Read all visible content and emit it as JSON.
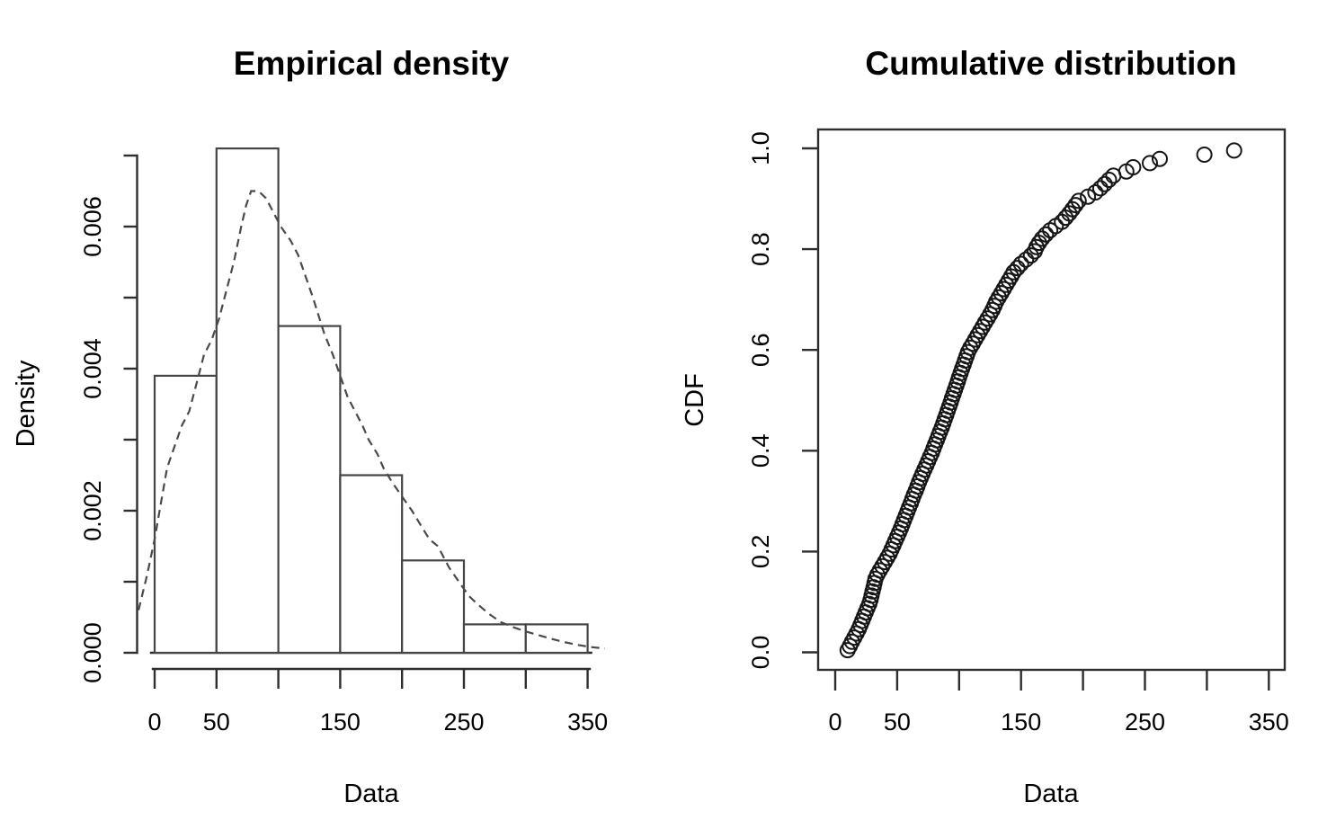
{
  "figure": {
    "background": "#ffffff",
    "text_color": "#000000",
    "line_color": "#2e2e2e",
    "point_color": "#161616"
  },
  "chart_data": [
    {
      "type": "bar",
      "subtype": "histogram-with-density-curve",
      "title": "Empirical density",
      "xlabel": "Data",
      "ylabel": "Density",
      "xlim": [
        -14,
        364
      ],
      "ylim": [
        0,
        0.007
      ],
      "grid": false,
      "legend": "none",
      "bin_breaks": [
        0,
        50,
        100,
        150,
        200,
        250,
        300,
        350
      ],
      "bin_densities": [
        0.0039,
        0.0071,
        0.0046,
        0.0025,
        0.0013,
        0.0004,
        0.0004
      ],
      "x_ticks": {
        "values": [
          0,
          50,
          100,
          150,
          200,
          250,
          300,
          350
        ],
        "labels": [
          "0",
          "50",
          "",
          "150",
          "",
          "250",
          "",
          "350"
        ]
      },
      "y_ticks": {
        "values": [
          0,
          0.001,
          0.002,
          0.003,
          0.004,
          0.005,
          0.006,
          0.007
        ],
        "labels": [
          "0.000",
          "",
          "0.002",
          "",
          "0.004",
          "",
          "0.006",
          ""
        ]
      },
      "density_curve_style": "dashed",
      "density_curve": [
        [
          -13,
          0.0006
        ],
        [
          -6,
          0.0011
        ],
        [
          0,
          0.0016
        ],
        [
          5,
          0.0021
        ],
        [
          10,
          0.0026
        ],
        [
          16,
          0.0029
        ],
        [
          22,
          0.0032
        ],
        [
          28,
          0.0034
        ],
        [
          34,
          0.0038
        ],
        [
          40,
          0.0042
        ],
        [
          46,
          0.0044
        ],
        [
          52,
          0.0047
        ],
        [
          58,
          0.0051
        ],
        [
          64,
          0.0055
        ],
        [
          70,
          0.006
        ],
        [
          74,
          0.0063
        ],
        [
          78,
          0.0065
        ],
        [
          84,
          0.0065
        ],
        [
          90,
          0.0064
        ],
        [
          96,
          0.0062
        ],
        [
          102,
          0.006
        ],
        [
          110,
          0.0058
        ],
        [
          116,
          0.0056
        ],
        [
          120,
          0.0054
        ],
        [
          128,
          0.005
        ],
        [
          137,
          0.0045
        ],
        [
          144,
          0.0042
        ],
        [
          150,
          0.0039
        ],
        [
          156,
          0.0036
        ],
        [
          162,
          0.0034
        ],
        [
          168,
          0.0032
        ],
        [
          173,
          0.003
        ],
        [
          180,
          0.0028
        ],
        [
          185,
          0.0026
        ],
        [
          192,
          0.0024
        ],
        [
          200,
          0.0022
        ],
        [
          208,
          0.002
        ],
        [
          215,
          0.0018
        ],
        [
          222,
          0.0016
        ],
        [
          229,
          0.0015
        ],
        [
          238,
          0.0012
        ],
        [
          248,
          0.00095
        ],
        [
          254,
          0.0008
        ],
        [
          260,
          0.0007
        ],
        [
          270,
          0.00055
        ],
        [
          280,
          0.00043
        ],
        [
          290,
          0.00036
        ],
        [
          300,
          0.0003
        ],
        [
          310,
          0.00025
        ],
        [
          320,
          0.0002
        ],
        [
          331,
          0.00015
        ],
        [
          342,
          0.00011
        ],
        [
          353,
          8e-05
        ],
        [
          364,
          6e-05
        ]
      ]
    },
    {
      "type": "scatter",
      "subtype": "ecdf",
      "title": "Cumulative distribution",
      "xlabel": "Data",
      "ylabel": "CDF",
      "xlim": [
        -14,
        364
      ],
      "ylim": [
        -0.04,
        1.04
      ],
      "grid": false,
      "legend": "none",
      "marker": "open-circle",
      "x_ticks": {
        "values": [
          0,
          50,
          100,
          150,
          200,
          250,
          300,
          350
        ],
        "labels": [
          "0",
          "50",
          "",
          "150",
          "",
          "250",
          "",
          "350"
        ]
      },
      "y_ticks": {
        "values": [
          0,
          0.2,
          0.4,
          0.6,
          0.8,
          1.0
        ],
        "labels": [
          "0.0",
          "0.2",
          "0.4",
          "0.6",
          "0.8",
          "1.0"
        ]
      },
      "points": [
        [
          10,
          0.0042
        ],
        [
          11.8,
          0.0125
        ],
        [
          13.6,
          0.0208
        ],
        [
          15.4,
          0.0292
        ],
        [
          17.2,
          0.0375
        ],
        [
          19,
          0.0458
        ],
        [
          20.4,
          0.0542
        ],
        [
          21.8,
          0.0625
        ],
        [
          23.2,
          0.0708
        ],
        [
          24.6,
          0.0792
        ],
        [
          26,
          0.0875
        ],
        [
          27.5,
          0.0958
        ],
        [
          28.5,
          0.1042
        ],
        [
          29.3,
          0.1125
        ],
        [
          30.1,
          0.1208
        ],
        [
          31,
          0.1292
        ],
        [
          31.7,
          0.1375
        ],
        [
          32.5,
          0.1458
        ],
        [
          34,
          0.1542
        ],
        [
          36,
          0.1625
        ],
        [
          38,
          0.1708
        ],
        [
          40,
          0.1792
        ],
        [
          42,
          0.1875
        ],
        [
          44,
          0.1958
        ],
        [
          45.5,
          0.2042
        ],
        [
          47,
          0.2125
        ],
        [
          48.5,
          0.2208
        ],
        [
          50,
          0.2292
        ],
        [
          51.5,
          0.2375
        ],
        [
          53,
          0.2458
        ],
        [
          54.3,
          0.2542
        ],
        [
          55.6,
          0.2625
        ],
        [
          57,
          0.2708
        ],
        [
          58.3,
          0.2792
        ],
        [
          59.6,
          0.2875
        ],
        [
          61,
          0.2958
        ],
        [
          62.3,
          0.3042
        ],
        [
          63.6,
          0.3125
        ],
        [
          65,
          0.3208
        ],
        [
          66.3,
          0.3292
        ],
        [
          67.6,
          0.3375
        ],
        [
          69,
          0.3458
        ],
        [
          70.5,
          0.3542
        ],
        [
          72,
          0.3625
        ],
        [
          73.5,
          0.3708
        ],
        [
          75,
          0.3792
        ],
        [
          76.5,
          0.3875
        ],
        [
          78,
          0.3958
        ],
        [
          79.3,
          0.4042
        ],
        [
          80.6,
          0.4125
        ],
        [
          82,
          0.4208
        ],
        [
          83.3,
          0.4292
        ],
        [
          84.6,
          0.4375
        ],
        [
          86,
          0.4458
        ],
        [
          87.2,
          0.4542
        ],
        [
          88.4,
          0.4625
        ],
        [
          89.6,
          0.4708
        ],
        [
          90.8,
          0.4792
        ],
        [
          92,
          0.4875
        ],
        [
          93.2,
          0.4958
        ],
        [
          94.3,
          0.5042
        ],
        [
          95.5,
          0.5125
        ],
        [
          96.6,
          0.5208
        ],
        [
          97.8,
          0.5292
        ],
        [
          99,
          0.5375
        ],
        [
          100,
          0.5458
        ],
        [
          101.2,
          0.5542
        ],
        [
          102.4,
          0.5625
        ],
        [
          103.6,
          0.5708
        ],
        [
          104.8,
          0.5792
        ],
        [
          106,
          0.5875
        ],
        [
          107.2,
          0.5958
        ],
        [
          109,
          0.6042
        ],
        [
          111,
          0.6125
        ],
        [
          113,
          0.6208
        ],
        [
          115,
          0.6292
        ],
        [
          117,
          0.6375
        ],
        [
          119,
          0.6458
        ],
        [
          121,
          0.6542
        ],
        [
          123,
          0.6625
        ],
        [
          125,
          0.6708
        ],
        [
          127,
          0.6792
        ],
        [
          128.5,
          0.6875
        ],
        [
          130,
          0.6958
        ],
        [
          132,
          0.7042
        ],
        [
          134,
          0.7125
        ],
        [
          136,
          0.7208
        ],
        [
          138,
          0.7292
        ],
        [
          140,
          0.7375
        ],
        [
          142,
          0.7458
        ],
        [
          144,
          0.7542
        ],
        [
          147,
          0.7625
        ],
        [
          150,
          0.7708
        ],
        [
          154,
          0.7792
        ],
        [
          158,
          0.7875
        ],
        [
          161,
          0.7958
        ],
        [
          162.5,
          0.8042
        ],
        [
          164.5,
          0.8125
        ],
        [
          167,
          0.8208
        ],
        [
          170,
          0.8292
        ],
        [
          173.5,
          0.8375
        ],
        [
          178,
          0.8458
        ],
        [
          183,
          0.8542
        ],
        [
          186,
          0.8625
        ],
        [
          189,
          0.8708
        ],
        [
          191.5,
          0.8792
        ],
        [
          194,
          0.8875
        ],
        [
          196.5,
          0.8958
        ],
        [
          204,
          0.9042
        ],
        [
          210,
          0.9125
        ],
        [
          214,
          0.9208
        ],
        [
          217.5,
          0.9292
        ],
        [
          221,
          0.9375
        ],
        [
          224.5,
          0.9458
        ],
        [
          235,
          0.9542
        ],
        [
          240.5,
          0.9625
        ],
        [
          254,
          0.9708
        ],
        [
          262,
          0.9792
        ],
        [
          298,
          0.9875
        ],
        [
          322,
          0.9958
        ]
      ]
    }
  ]
}
